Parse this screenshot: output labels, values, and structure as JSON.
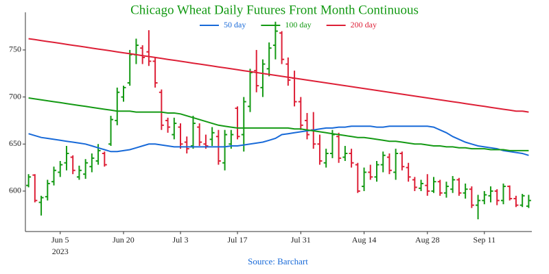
{
  "chart_data": {
    "type": "ohlc",
    "title": "Chicago Wheat Daily Futures Front Month Continuous",
    "source": "Source: Barchart",
    "year_label": "2023",
    "categories": [
      null,
      null,
      null,
      null,
      null,
      "Jun 5",
      null,
      null,
      null,
      null,
      null,
      null,
      null,
      null,
      null,
      "Jun 20",
      null,
      null,
      null,
      null,
      null,
      null,
      null,
      null,
      "Jul 3",
      null,
      null,
      null,
      null,
      null,
      null,
      null,
      null,
      "Jul 17",
      null,
      null,
      null,
      null,
      null,
      null,
      null,
      null,
      null,
      "Jul 31",
      null,
      null,
      null,
      null,
      null,
      null,
      null,
      null,
      null,
      "Aug 14",
      null,
      null,
      null,
      null,
      null,
      null,
      null,
      null,
      null,
      "Aug 28",
      null,
      null,
      null,
      null,
      null,
      null,
      null,
      null,
      "Sep 11",
      null,
      null,
      null,
      null,
      null,
      null,
      null
    ],
    "open": [
      606,
      617,
      588,
      594,
      610,
      620,
      630,
      636,
      615,
      618,
      626,
      632,
      640,
      650,
      675,
      700,
      715,
      745,
      752,
      748,
      738,
      705,
      675,
      660,
      668,
      652,
      648,
      668,
      650,
      655,
      658,
      630,
      650,
      688,
      660,
      690,
      728,
      710,
      730,
      755,
      768,
      735,
      720,
      695,
      675,
      665,
      650,
      630,
      640,
      658,
      636,
      640,
      628,
      605,
      620,
      615,
      628,
      636,
      620,
      640,
      625,
      612,
      603,
      606,
      600,
      610,
      598,
      602,
      612,
      598,
      602,
      585,
      590,
      595,
      600,
      590,
      605,
      592,
      585,
      584
    ],
    "high": [
      618,
      618,
      595,
      612,
      626,
      632,
      648,
      638,
      627,
      634,
      640,
      650,
      642,
      680,
      710,
      712,
      750,
      762,
      755,
      771,
      742,
      708,
      678,
      678,
      672,
      658,
      680,
      672,
      660,
      668,
      665,
      665,
      665,
      690,
      700,
      730,
      750,
      740,
      758,
      780,
      770,
      742,
      728,
      700,
      683,
      684,
      660,
      645,
      665,
      662,
      648,
      645,
      630,
      625,
      628,
      632,
      642,
      640,
      645,
      642,
      630,
      615,
      612,
      618,
      615,
      612,
      610,
      616,
      614,
      608,
      605,
      596,
      600,
      605,
      602,
      608,
      606,
      595,
      597,
      596
    ],
    "low": [
      604,
      588,
      574,
      590,
      606,
      615,
      622,
      618,
      612,
      613,
      620,
      628,
      626,
      648,
      670,
      695,
      712,
      735,
      735,
      733,
      710,
      665,
      662,
      655,
      645,
      640,
      645,
      648,
      645,
      648,
      628,
      622,
      645,
      655,
      642,
      684,
      705,
      700,
      722,
      740,
      735,
      712,
      690,
      665,
      655,
      645,
      628,
      625,
      635,
      630,
      632,
      625,
      598,
      600,
      612,
      610,
      620,
      618,
      612,
      622,
      610,
      600,
      600,
      595,
      598,
      595,
      593,
      598,
      595,
      592,
      582,
      570,
      586,
      588,
      585,
      586,
      590,
      583,
      583,
      582
    ],
    "close": [
      615,
      590,
      593,
      608,
      622,
      628,
      640,
      622,
      622,
      630,
      635,
      643,
      628,
      676,
      705,
      710,
      745,
      755,
      742,
      738,
      715,
      670,
      668,
      672,
      650,
      645,
      672,
      652,
      648,
      662,
      632,
      660,
      660,
      658,
      695,
      726,
      712,
      735,
      752,
      770,
      740,
      718,
      695,
      670,
      660,
      650,
      632,
      640,
      660,
      635,
      640,
      630,
      600,
      620,
      615,
      628,
      638,
      622,
      640,
      626,
      615,
      604,
      608,
      600,
      610,
      598,
      605,
      612,
      598,
      602,
      585,
      590,
      596,
      600,
      590,
      605,
      592,
      585,
      595,
      590
    ],
    "up_color": "#139913",
    "down_color": "#dd1f36",
    "series": [
      {
        "name": "50 day",
        "color": "#1769d8",
        "values": [
          661,
          659,
          657,
          656,
          655,
          654,
          653,
          652,
          651,
          650,
          648,
          646,
          644,
          642,
          642,
          643,
          644,
          646,
          648,
          650,
          650,
          649,
          648,
          647,
          647,
          647,
          647,
          647,
          647,
          647,
          647,
          647,
          648,
          648,
          649,
          650,
          651,
          652,
          654,
          656,
          660,
          661,
          662,
          663,
          664,
          665,
          666,
          667,
          667,
          668,
          668,
          669,
          669,
          669,
          669,
          668,
          668,
          669,
          669,
          669,
          669,
          669,
          669,
          669,
          668,
          665,
          662,
          658,
          655,
          652,
          650,
          648,
          647,
          646,
          645,
          643,
          642,
          641,
          640,
          638
        ]
      },
      {
        "name": "100 day",
        "color": "#139913",
        "values": [
          699,
          698,
          697,
          696,
          695,
          694,
          693,
          692,
          691,
          690,
          689,
          688,
          687,
          686,
          685,
          685,
          685,
          684,
          684,
          684,
          684,
          684,
          683,
          683,
          682,
          680,
          678,
          676,
          674,
          672,
          670,
          669,
          668,
          667,
          667,
          667,
          667,
          667,
          667,
          667,
          667,
          667,
          666,
          666,
          665,
          664,
          663,
          662,
          661,
          660,
          659,
          658,
          657,
          657,
          656,
          655,
          654,
          653,
          653,
          652,
          651,
          650,
          650,
          649,
          648,
          648,
          647,
          647,
          646,
          646,
          645,
          645,
          645,
          644,
          644,
          644,
          643,
          643,
          643,
          643
        ]
      },
      {
        "name": "200 day",
        "color": "#dd1f36",
        "values": [
          762,
          761,
          760,
          759,
          758,
          757,
          756,
          755,
          754,
          753,
          752,
          751,
          750,
          749,
          748,
          747,
          746,
          745,
          744,
          743,
          742,
          741,
          740,
          739,
          738,
          737,
          736,
          735,
          734,
          733,
          732,
          731,
          730,
          729,
          728,
          727,
          726,
          725,
          724,
          723,
          722,
          721,
          720,
          719,
          718,
          717,
          716,
          715,
          714,
          713,
          712,
          711,
          710,
          709,
          708,
          707,
          706,
          705,
          704,
          703,
          702,
          701,
          700,
          699,
          698,
          697,
          696,
          695,
          694,
          693,
          692,
          691,
          690,
          689,
          688,
          687,
          686,
          685,
          685,
          684
        ]
      }
    ],
    "ylim": [
      557,
      790
    ],
    "yticks": [
      600,
      650,
      700,
      750
    ]
  }
}
